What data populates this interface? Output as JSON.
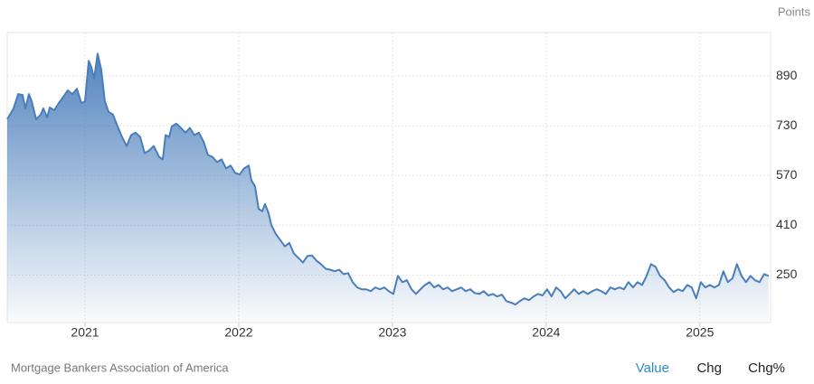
{
  "chart_data": {
    "type": "area",
    "y_label": "Points",
    "color": "#4a7ebb",
    "grid": true,
    "y_axis_side": "right",
    "xlim": [
      2020.494,
      2025.46
    ],
    "xticks": [
      2021,
      2022,
      2023,
      2024,
      2025
    ],
    "ylim": [
      97,
      1030
    ],
    "yticks": [
      250,
      410,
      570,
      730,
      890
    ],
    "x": [
      2020.494,
      2020.535,
      2020.565,
      2020.594,
      2020.612,
      2020.635,
      2020.653,
      2020.682,
      2020.712,
      2020.729,
      2020.753,
      2020.771,
      2020.8,
      2020.829,
      2020.859,
      2020.888,
      2020.918,
      2020.947,
      2020.976,
      2021.0,
      2021.024,
      2021.041,
      2021.059,
      2021.082,
      2021.106,
      2021.129,
      2021.153,
      2021.182,
      2021.212,
      2021.241,
      2021.271,
      2021.3,
      2021.329,
      2021.359,
      2021.388,
      2021.418,
      2021.447,
      2021.482,
      2021.506,
      2021.524,
      2021.547,
      2021.565,
      2021.594,
      2021.624,
      2021.653,
      2021.682,
      2021.712,
      2021.741,
      2021.771,
      2021.8,
      2021.829,
      2021.859,
      2021.888,
      2021.918,
      2021.947,
      2021.976,
      2022.006,
      2022.035,
      2022.065,
      2022.082,
      2022.106,
      2022.129,
      2022.153,
      2022.171,
      2022.194,
      2022.212,
      2022.241,
      2022.271,
      2022.3,
      2022.329,
      2022.359,
      2022.388,
      2022.418,
      2022.447,
      2022.476,
      2022.506,
      2022.535,
      2022.565,
      2022.594,
      2022.624,
      2022.653,
      2022.682,
      2022.712,
      2022.741,
      2022.771,
      2022.8,
      2022.829,
      2022.859,
      2022.888,
      2022.918,
      2022.947,
      2022.976,
      2023.006,
      2023.035,
      2023.065,
      2023.094,
      2023.124,
      2023.153,
      2023.182,
      2023.212,
      2023.241,
      2023.271,
      2023.3,
      2023.329,
      2023.359,
      2023.388,
      2023.418,
      2023.447,
      2023.476,
      2023.506,
      2023.535,
      2023.565,
      2023.594,
      2023.624,
      2023.653,
      2023.682,
      2023.712,
      2023.741,
      2023.771,
      2023.8,
      2023.829,
      2023.859,
      2023.888,
      2023.918,
      2023.947,
      2023.976,
      2024.006,
      2024.035,
      2024.065,
      2024.094,
      2024.124,
      2024.153,
      2024.182,
      2024.212,
      2024.241,
      2024.271,
      2024.3,
      2024.329,
      2024.359,
      2024.388,
      2024.418,
      2024.447,
      2024.476,
      2024.506,
      2024.535,
      2024.565,
      2024.594,
      2024.624,
      2024.653,
      2024.682,
      2024.712,
      2024.741,
      2024.771,
      2024.8,
      2024.829,
      2024.859,
      2024.888,
      2024.918,
      2024.947,
      2024.976,
      2025.006,
      2025.035,
      2025.065,
      2025.094,
      2025.124,
      2025.153,
      2025.182,
      2025.212,
      2025.241,
      2025.271,
      2025.3,
      2025.329,
      2025.359,
      2025.388,
      2025.418,
      2025.447
    ],
    "values": [
      751,
      786,
      832,
      829,
      786,
      832,
      809,
      751,
      766,
      786,
      757,
      789,
      780,
      803,
      823,
      844,
      832,
      849,
      803,
      809,
      939,
      919,
      881,
      962,
      910,
      809,
      775,
      766,
      728,
      694,
      665,
      700,
      708,
      694,
      642,
      651,
      665,
      630,
      622,
      700,
      694,
      728,
      737,
      723,
      708,
      723,
      700,
      708,
      679,
      636,
      630,
      613,
      622,
      593,
      602,
      579,
      573,
      593,
      602,
      555,
      535,
      463,
      455,
      478,
      449,
      411,
      382,
      362,
      342,
      353,
      319,
      305,
      290,
      311,
      313,
      296,
      285,
      270,
      267,
      262,
      267,
      253,
      256,
      227,
      210,
      204,
      204,
      198,
      210,
      204,
      210,
      198,
      189,
      247,
      227,
      233,
      204,
      189,
      204,
      218,
      227,
      210,
      218,
      204,
      210,
      198,
      204,
      210,
      198,
      204,
      192,
      189,
      198,
      184,
      189,
      181,
      187,
      166,
      161,
      155,
      166,
      175,
      169,
      181,
      189,
      184,
      204,
      181,
      210,
      198,
      175,
      189,
      204,
      189,
      198,
      189,
      198,
      204,
      198,
      189,
      210,
      204,
      210,
      204,
      227,
      210,
      227,
      218,
      247,
      285,
      276,
      247,
      233,
      210,
      195,
      204,
      198,
      218,
      210,
      175,
      227,
      210,
      218,
      210,
      218,
      262,
      227,
      239,
      285,
      247,
      227,
      247,
      233,
      227,
      253,
      247
    ]
  },
  "footer": {
    "source": "Mortgage Bankers Association of America",
    "tabs": [
      "Value",
      "Chg",
      "Chg%"
    ]
  }
}
